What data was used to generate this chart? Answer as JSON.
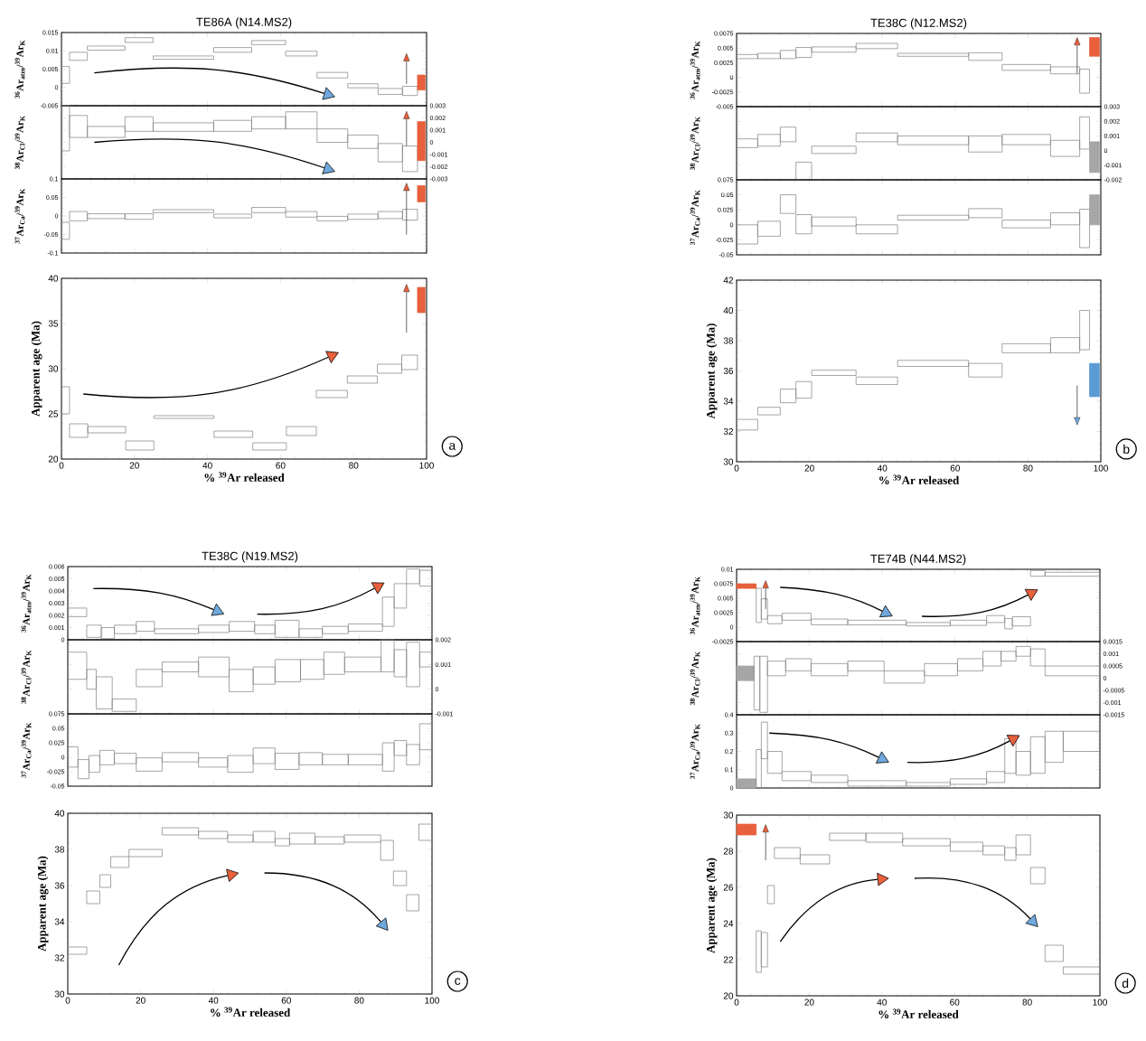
{
  "chart_data": [
    {
      "type": "histogram",
      "title": "TE86A (N14.MS2)",
      "ylabel": "$^{36}$Ar$_{atm}$/$^{39}$Ar$_{K}$",
      "xlim": [
        0,
        100
      ],
      "xticks": [
        0,
        20,
        40,
        60,
        80,
        100
      ],
      "ylim": [
        -0.005,
        0.015
      ],
      "yticks": [
        -0.005,
        0,
        0.005,
        0.01,
        0.015
      ],
      "tick_labels": "y",
      "color": "#7f7f7f",
      "bins": [
        0,
        2.2,
        7.1,
        17.4,
        25.1,
        41.7,
        52.1,
        61.4,
        70.0,
        78.4,
        86.7,
        93.4,
        97.5,
        99.6
      ],
      "base": [
        0.0011,
        0.0074,
        0.0102,
        0.0123,
        0.0077,
        0.0096,
        0.0117,
        0.0086,
        0.0026,
        -0.0001,
        -0.0019,
        -0.0022,
        -0.0007
      ],
      "values": [
        0.0046,
        0.0022,
        0.0011,
        0.0013,
        0.0009,
        0.0013,
        0.0011,
        0.0013,
        0.0015,
        0.0011,
        0.0016,
        0.0025,
        0.0041
      ],
      "colors": [
        "#7f7f7f",
        "#7f7f7f",
        "#7f7f7f",
        "#7f7f7f",
        "#7f7f7f",
        "#7f7f7f",
        "#7f7f7f",
        "#7f7f7f",
        "#7f7f7f",
        "#7f7f7f",
        "#7f7f7f",
        "#7f7f7f",
        "#e8603c"
      ]
    },
    {
      "type": "histogram",
      "ylabel": "$^{38}$Ar$_{Cl}$/$^{39}$Ar$_{K}$",
      "xlim": [
        0,
        100
      ],
      "xticks": [
        0,
        20,
        40,
        60,
        80,
        100
      ],
      "ylim": [
        -0.003,
        0.003
      ],
      "yticks": [
        -0.003,
        -0.002,
        -0.001,
        0,
        0.001,
        0.002,
        0.003
      ],
      "tick_labels": "y",
      "color": "#7f7f7f",
      "bins": [
        0,
        2.2,
        7.1,
        17.4,
        25.1,
        41.7,
        52.1,
        61.4,
        70.0,
        78.4,
        86.7,
        93.4,
        97.5,
        99.6
      ],
      "base": [
        -0.0007,
        0.0004,
        0.0004,
        0.0009,
        0.0009,
        0.0009,
        0.0011,
        0.0011,
        0.0,
        -0.0005,
        -0.0016,
        -0.0024,
        -0.0015
      ],
      "values": [
        0.0037,
        0.0018,
        0.0009,
        0.0012,
        0.0007,
        0.0009,
        0.001,
        0.0014,
        0.0011,
        0.0011,
        0.0015,
        0.0021,
        0.0032
      ],
      "colors": [
        "#7f7f7f",
        "#7f7f7f",
        "#7f7f7f",
        "#7f7f7f",
        "#7f7f7f",
        "#7f7f7f",
        "#7f7f7f",
        "#7f7f7f",
        "#7f7f7f",
        "#7f7f7f",
        "#7f7f7f",
        "#7f7f7f",
        "#e8603c"
      ]
    },
    {
      "type": "histogram",
      "ylabel": "$^{37}$Ar$_{Ca}$/$^{39}$Ar$_{K}$",
      "xlim": [
        0,
        100
      ],
      "xticks": [
        0,
        20,
        40,
        60,
        80,
        100
      ],
      "ylim": [
        -0.1,
        0.1
      ],
      "yticks": [
        -0.1,
        -0.05,
        0,
        0.05,
        0.1
      ],
      "tick_labels": "y",
      "color": "#7f7f7f",
      "bins": [
        0,
        2.2,
        7.1,
        17.4,
        25.1,
        41.7,
        52.1,
        61.4,
        70.0,
        78.4,
        86.7,
        93.4,
        97.5,
        99.6
      ],
      "base": [
        -0.063,
        -0.013,
        -0.007,
        -0.009,
        0.009,
        -0.005,
        0.009,
        -0.003,
        -0.013,
        -0.009,
        -0.007,
        -0.011,
        0.038
      ],
      "values": [
        0.046,
        0.025,
        0.013,
        0.015,
        0.008,
        0.01,
        0.014,
        0.015,
        0.012,
        0.014,
        0.019,
        0.029,
        0.044
      ],
      "colors": [
        "#7f7f7f",
        "#7f7f7f",
        "#7f7f7f",
        "#7f7f7f",
        "#7f7f7f",
        "#7f7f7f",
        "#7f7f7f",
        "#7f7f7f",
        "#7f7f7f",
        "#7f7f7f",
        "#7f7f7f",
        "#7f7f7f",
        "#e8603c"
      ]
    },
    {
      "type": "histogram",
      "xlabel": "% $^{39}$Ar released",
      "ylabel": "Apparent age (Ma)",
      "annotations": [
        "a"
      ],
      "xlim": [
        0,
        100
      ],
      "xticks": [
        0,
        20,
        40,
        60,
        80,
        100
      ],
      "ylim": [
        20,
        40
      ],
      "yticks": [
        20,
        25,
        30,
        35,
        40
      ],
      "color": "#7f7f7f",
      "bins": [
        0,
        2.2,
        7.2,
        17.6,
        25.3,
        41.8,
        52.4,
        61.6,
        69.8,
        78.3,
        86.5,
        93.2,
        97.5,
        99.6
      ],
      "base": [
        25.0,
        22.4,
        22.9,
        21.0,
        24.5,
        22.4,
        21.0,
        22.6,
        26.8,
        28.4,
        29.5,
        29.9,
        36.2
      ],
      "values": [
        3.0,
        1.5,
        0.7,
        1.0,
        0.3,
        0.7,
        0.8,
        1.0,
        0.8,
        0.8,
        1.0,
        1.6,
        2.8
      ],
      "colors": [
        "#7f7f7f",
        "#7f7f7f",
        "#7f7f7f",
        "#7f7f7f",
        "#7f7f7f",
        "#7f7f7f",
        "#7f7f7f",
        "#7f7f7f",
        "#7f7f7f",
        "#7f7f7f",
        "#7f7f7f",
        "#7f7f7f",
        "#e8603c"
      ]
    },
    {
      "type": "histogram",
      "title": "TE38C (N12.MS2)",
      "ylabel": "$^{36}$Ar$_{atm}$/$^{39}$Ar$_{K}$",
      "xlim": [
        0,
        100
      ],
      "xticks": [
        0,
        20,
        40,
        60,
        80,
        100
      ],
      "ylim": [
        -0.005,
        0.0075
      ],
      "yticks": [
        -0.005,
        -0.0025,
        0,
        0.0025,
        0.005,
        0.0075
      ],
      "tick_labels": "y",
      "color": "#7f7f7f",
      "bins": [
        0,
        5.8,
        12.0,
        16.3,
        20.6,
        32.8,
        44.2,
        63.7,
        72.9,
        86.2,
        94.2,
        96.9,
        99.6
      ],
      "base": [
        0.0032,
        0.0032,
        0.0032,
        0.0034,
        0.0043,
        0.0049,
        0.0036,
        0.0029,
        0.0012,
        0.0006,
        -0.0027,
        0.0036
      ],
      "values": [
        0.0007,
        0.0009,
        0.0014,
        0.0017,
        0.0009,
        0.0009,
        0.0005,
        0.0013,
        0.001,
        0.0012,
        0.0041,
        0.0032
      ],
      "colors": [
        "#7f7f7f",
        "#7f7f7f",
        "#7f7f7f",
        "#7f7f7f",
        "#7f7f7f",
        "#7f7f7f",
        "#7f7f7f",
        "#7f7f7f",
        "#7f7f7f",
        "#7f7f7f",
        "#7f7f7f",
        "#e8603c"
      ]
    },
    {
      "type": "histogram",
      "ylabel": "$^{38}$Ar$_{Cl}$/$^{39}$Ar$_{K}$",
      "xlim": [
        0,
        100
      ],
      "xticks": [
        0,
        20,
        40,
        60,
        80,
        100
      ],
      "ylim": [
        -0.002,
        0.003
      ],
      "yticks": [
        -0.002,
        -0.001,
        0,
        0.001,
        0.002,
        0.003
      ],
      "tick_labels": "y",
      "color": "#7f7f7f",
      "bins": [
        0,
        5.8,
        12.0,
        16.3,
        20.6,
        32.8,
        44.2,
        63.7,
        72.9,
        86.2,
        94.2,
        96.9,
        99.6
      ],
      "base": [
        0.0002,
        0.0003,
        0.0006,
        -0.002,
        -0.0002,
        0.0006,
        0.0004,
        -0.0001,
        0.0004,
        -0.0004,
        0.0001,
        -0.0015
      ],
      "values": [
        0.0006,
        0.0008,
        0.001,
        0.0012,
        0.0005,
        0.0006,
        0.0006,
        0.0011,
        0.0007,
        0.0011,
        0.0022,
        0.0021
      ],
      "colors": [
        "#7f7f7f",
        "#7f7f7f",
        "#7f7f7f",
        "#7f7f7f",
        "#7f7f7f",
        "#7f7f7f",
        "#7f7f7f",
        "#7f7f7f",
        "#7f7f7f",
        "#7f7f7f",
        "#7f7f7f",
        "#a6a6a6"
      ]
    },
    {
      "type": "histogram",
      "ylabel": "$^{37}$Ar$_{Ca}$/$^{39}$Ar$_{K}$",
      "xlim": [
        0,
        100
      ],
      "xticks": [
        0,
        20,
        40,
        60,
        80,
        100
      ],
      "ylim": [
        -0.05,
        0.075
      ],
      "yticks": [
        -0.05,
        -0.025,
        0,
        0.025,
        0.05,
        0.075
      ],
      "tick_labels": "y",
      "color": "#7f7f7f",
      "bins": [
        0,
        5.8,
        12.0,
        16.3,
        20.6,
        32.8,
        44.2,
        63.7,
        72.9,
        86.2,
        94.2,
        96.9,
        99.6
      ],
      "base": [
        -0.032,
        -0.019,
        0.019,
        -0.015,
        -0.002,
        -0.015,
        0.008,
        0.012,
        -0.005,
        0.0,
        -0.038,
        0.0
      ],
      "values": [
        0.032,
        0.025,
        0.031,
        0.032,
        0.015,
        0.015,
        0.008,
        0.015,
        0.013,
        0.02,
        0.064,
        0.05
      ],
      "colors": [
        "#7f7f7f",
        "#7f7f7f",
        "#7f7f7f",
        "#7f7f7f",
        "#7f7f7f",
        "#7f7f7f",
        "#7f7f7f",
        "#7f7f7f",
        "#7f7f7f",
        "#7f7f7f",
        "#7f7f7f",
        "#a6a6a6"
      ]
    },
    {
      "type": "histogram",
      "xlabel": "% $^{39}$Ar released",
      "ylabel": "Apparent age (Ma)",
      "annotations": [
        "b"
      ],
      "xlim": [
        0,
        100
      ],
      "xticks": [
        0,
        20,
        40,
        60,
        80,
        100
      ],
      "ylim": [
        30,
        42
      ],
      "yticks": [
        30,
        32,
        34,
        36,
        38,
        40,
        42
      ],
      "color": "#7f7f7f",
      "bins": [
        0,
        5.8,
        12.0,
        16.3,
        20.6,
        32.8,
        44.2,
        63.7,
        72.9,
        86.2,
        94.2,
        96.9,
        99.6
      ],
      "base": [
        32.1,
        33.1,
        33.9,
        34.2,
        35.7,
        35.1,
        36.3,
        35.6,
        37.2,
        37.2,
        37.4,
        34.3
      ],
      "values": [
        0.7,
        0.5,
        0.9,
        1.1,
        0.35,
        0.5,
        0.4,
        0.9,
        0.6,
        1.0,
        2.6,
        2.2
      ],
      "colors": [
        "#7f7f7f",
        "#7f7f7f",
        "#7f7f7f",
        "#7f7f7f",
        "#7f7f7f",
        "#7f7f7f",
        "#7f7f7f",
        "#7f7f7f",
        "#7f7f7f",
        "#7f7f7f",
        "#7f7f7f",
        "#5b9bd5"
      ]
    },
    {
      "type": "histogram",
      "title": "TE38C (N19.MS2)",
      "ylabel": "$^{36}$Ar$_{atm}$/$^{39}$Ar$_{K}$",
      "xlim": [
        0,
        100
      ],
      "xticks": [
        0,
        20,
        40,
        60,
        80,
        100
      ],
      "ylim": [
        0,
        0.006
      ],
      "yticks": [
        0,
        0.001,
        0.002,
        0.003,
        0.004,
        0.005,
        0.006
      ],
      "tick_labels": "y",
      "color": "#7f7f7f",
      "bins": [
        0,
        5.2,
        9.2,
        12.8,
        18.8,
        23.8,
        35.9,
        44.3,
        51.3,
        56.9,
        63.5,
        69.9,
        77.0,
        86.4,
        89.6,
        93.0,
        96.6,
        100
      ],
      "base": [
        0.0019,
        0.0002,
        0.0001,
        0.0005,
        0.0007,
        0.0005,
        0.0006,
        0.0007,
        0.0005,
        0.0002,
        0.0002,
        0.0005,
        0.0007,
        0.0011,
        0.0026,
        0.0046,
        0.0044
      ],
      "values": [
        0.0007,
        0.001,
        0.0009,
        0.0007,
        0.0008,
        0.0004,
        0.0006,
        0.0008,
        0.0007,
        0.0014,
        0.0007,
        0.0006,
        0.0006,
        0.0024,
        0.002,
        0.0012,
        0.0013
      ]
    },
    {
      "type": "histogram",
      "ylabel": "$^{38}$Ar$_{Cl}$/$^{39}$Ar$_{K}$",
      "xlim": [
        0,
        100
      ],
      "xticks": [
        0,
        20,
        40,
        60,
        80,
        100
      ],
      "ylim": [
        -0.001,
        0.002
      ],
      "yticks": [
        -0.001,
        0,
        0.001,
        0.002
      ],
      "tick_labels": "y",
      "color": "#7f7f7f",
      "bins": [
        0,
        5.2,
        7.8,
        12.2,
        18.8,
        25.9,
        35.9,
        44.3,
        50.9,
        56.9,
        63.9,
        70.3,
        76.0,
        86.0,
        89.6,
        93.0,
        96.6,
        100
      ],
      "base": [
        0.0004,
        0.0,
        -0.0008,
        -0.0009,
        0.0001,
        0.0007,
        0.0005,
        -0.0001,
        0.0002,
        0.0003,
        0.0004,
        0.0006,
        0.0007,
        0.0007,
        0.0005,
        0.0001,
        0.0009
      ],
      "values": [
        0.0011,
        0.0008,
        0.0013,
        0.0005,
        0.0007,
        0.0004,
        0.0008,
        0.0009,
        0.0007,
        0.0009,
        0.0008,
        0.0009,
        0.0006,
        0.0013,
        0.0011,
        0.0018,
        0.0006
      ]
    },
    {
      "type": "histogram",
      "ylabel": "$^{37}$Ar$_{Ca}$/$^{39}$Ar$_{K}$",
      "xlim": [
        0,
        100
      ],
      "xticks": [
        0,
        20,
        40,
        60,
        80,
        100
      ],
      "ylim": [
        -0.05,
        0.075
      ],
      "yticks": [
        -0.05,
        -0.025,
        0,
        0.025,
        0.05,
        0.075
      ],
      "tick_labels": "y",
      "color": "#7f7f7f",
      "bins": [
        0,
        2.8,
        5.8,
        8.8,
        12.8,
        18.8,
        25.9,
        35.9,
        43.9,
        50.9,
        56.9,
        63.5,
        69.9,
        77.0,
        86.4,
        89.6,
        93.0,
        96.6,
        100
      ],
      "base": [
        -0.017,
        -0.037,
        -0.026,
        -0.013,
        -0.011,
        -0.024,
        -0.008,
        -0.017,
        -0.026,
        -0.011,
        -0.021,
        -0.013,
        -0.013,
        -0.013,
        -0.024,
        0.003,
        -0.013,
        0.013
      ],
      "values": [
        0.035,
        0.033,
        0.029,
        0.025,
        0.018,
        0.023,
        0.016,
        0.016,
        0.029,
        0.027,
        0.028,
        0.021,
        0.018,
        0.018,
        0.049,
        0.026,
        0.035,
        0.045
      ]
    },
    {
      "type": "histogram",
      "xlabel": "% $^{39}$Ar released",
      "ylabel": "Apparent age (Ma)",
      "annotations": [
        "c"
      ],
      "xlim": [
        0,
        100
      ],
      "xticks": [
        0,
        20,
        40,
        60,
        80,
        100
      ],
      "ylim": [
        30,
        40
      ],
      "yticks": [
        30,
        32,
        34,
        36,
        38,
        40
      ],
      "color": "#7f7f7f",
      "bins": [
        0,
        5.2,
        8.8,
        11.8,
        16.8,
        25.9,
        35.9,
        43.9,
        50.9,
        56.9,
        60.9,
        67.9,
        75.9,
        85.9,
        89.4,
        93.0,
        96.4,
        100
      ],
      "base": [
        32.2,
        35.0,
        35.9,
        37.0,
        37.6,
        38.8,
        38.6,
        38.4,
        38.4,
        38.2,
        38.3,
        38.3,
        38.4,
        37.4,
        36.0,
        34.6,
        38.5
      ],
      "values": [
        0.4,
        0.7,
        0.7,
        0.6,
        0.4,
        0.4,
        0.4,
        0.4,
        0.6,
        0.4,
        0.6,
        0.4,
        0.4,
        1.1,
        0.8,
        0.9,
        0.9
      ]
    },
    {
      "type": "histogram",
      "title": "TE74B (N44.MS2)",
      "ylabel": "$^{36}$Ar$_{atm}$/$^{39}$Ar$_{K}$",
      "xlim": [
        0,
        100
      ],
      "xticks": [
        0,
        20,
        40,
        60,
        80,
        100
      ],
      "ylim": [
        -0.0025,
        0.01
      ],
      "yticks": [
        -0.0025,
        0,
        0.0025,
        0.005,
        0.0075,
        0.01
      ],
      "tick_labels": "y",
      "color": "#7f7f7f",
      "bins": [
        0,
        5.4,
        6.8,
        8.5,
        12.5,
        20.5,
        30.6,
        46.7,
        58.8,
        68.8,
        73.8,
        75.9,
        80.9,
        84.9,
        100
      ],
      "base": [
        0.0067,
        0.0008,
        0.0014,
        0.0006,
        0.0012,
        0.0004,
        0.0004,
        0.0002,
        0.0003,
        0.0008,
        -0.0003,
        0.0002,
        0.0088,
        0.0088
      ],
      "values": [
        0.0008,
        0.0059,
        0.0035,
        0.0014,
        0.0012,
        0.001,
        0.0008,
        0.0006,
        0.0009,
        0.0012,
        0.0018,
        0.0016,
        0.001,
        0.0007
      ],
      "colors": [
        "#e8603c",
        "#7f7f7f",
        "#7f7f7f",
        "#7f7f7f",
        "#7f7f7f",
        "#7f7f7f",
        "#7f7f7f",
        "#7f7f7f",
        "#7f7f7f",
        "#7f7f7f",
        "#7f7f7f",
        "#7f7f7f",
        "#7f7f7f",
        "#7f7f7f"
      ]
    },
    {
      "type": "histogram",
      "ylabel": "$^{38}$Ar$_{Cl}$/$^{39}$Ar$_{K}$",
      "xlim": [
        0,
        100
      ],
      "xticks": [
        0,
        20,
        40,
        60,
        80,
        100
      ],
      "ylim": [
        -0.0015,
        0.0015
      ],
      "yticks": [
        -0.0015,
        -0.001,
        -0.0005,
        0,
        0.0005,
        0.001,
        0.0015
      ],
      "tick_labels": "y",
      "color": "#7f7f7f",
      "bins": [
        0,
        4.8,
        6.4,
        8.5,
        13.5,
        20.5,
        30.6,
        40.6,
        51.7,
        60.8,
        67.8,
        72.8,
        76.9,
        80.9,
        84.9,
        100
      ],
      "base": [
        -0.0001,
        -0.0013,
        -0.0014,
        0.0001,
        0.0003,
        0.0001,
        0.0003,
        -0.0002,
        0.0001,
        0.0003,
        0.0005,
        0.0007,
        0.0009,
        0.0005,
        0.0001
      ],
      "values": [
        0.0006,
        0.0022,
        0.0023,
        0.0006,
        0.0005,
        0.0005,
        0.0004,
        0.0005,
        0.0005,
        0.0005,
        0.0006,
        0.0004,
        0.0004,
        0.0007,
        0.0004
      ],
      "colors": [
        "#a6a6a6",
        "#7f7f7f",
        "#7f7f7f",
        "#7f7f7f",
        "#7f7f7f",
        "#7f7f7f",
        "#7f7f7f",
        "#7f7f7f",
        "#7f7f7f",
        "#7f7f7f",
        "#7f7f7f",
        "#7f7f7f",
        "#7f7f7f",
        "#7f7f7f",
        "#7f7f7f"
      ]
    },
    {
      "type": "histogram",
      "ylabel": "$^{37}$Ar$_{Ca}$/$^{39}$Ar$_{K}$",
      "xlim": [
        0,
        100
      ],
      "xticks": [
        0,
        20,
        40,
        60,
        80,
        100
      ],
      "ylim": [
        0,
        0.4
      ],
      "yticks": [
        0,
        0.1,
        0.2,
        0.3,
        0.4
      ],
      "tick_labels": "y",
      "color": "#7f7f7f",
      "bins": [
        0,
        5.4,
        6.8,
        8.5,
        12.5,
        20.5,
        30.6,
        46.7,
        58.8,
        68.8,
        73.8,
        76.9,
        80.9,
        84.9,
        89.9,
        100
      ],
      "base": [
        0.0,
        0.0,
        0.16,
        0.08,
        0.04,
        0.03,
        0.01,
        0.01,
        0.02,
        0.03,
        0.08,
        0.07,
        0.08,
        0.14,
        0.2
      ],
      "values": [
        0.05,
        0.21,
        0.2,
        0.12,
        0.05,
        0.04,
        0.03,
        0.02,
        0.03,
        0.06,
        0.19,
        0.13,
        0.2,
        0.17,
        0.11
      ],
      "colors": [
        "#a6a6a6",
        "#7f7f7f",
        "#7f7f7f",
        "#7f7f7f",
        "#7f7f7f",
        "#7f7f7f",
        "#7f7f7f",
        "#7f7f7f",
        "#7f7f7f",
        "#7f7f7f",
        "#7f7f7f",
        "#7f7f7f",
        "#7f7f7f",
        "#7f7f7f",
        "#7f7f7f"
      ]
    },
    {
      "type": "histogram",
      "xlabel": "% $^{39}$Ar released",
      "ylabel": "Apparent age (Ma)",
      "annotations": [
        "d"
      ],
      "xlim": [
        0,
        100
      ],
      "xticks": [
        0,
        20,
        40,
        60,
        80,
        100
      ],
      "ylim": [
        20,
        30
      ],
      "yticks": [
        20,
        22,
        24,
        26,
        28,
        30
      ],
      "color": "#7f7f7f",
      "bins": [
        0,
        5.4,
        6.8,
        8.5,
        10.4,
        17.5,
        25.6,
        35.6,
        45.7,
        58.8,
        67.8,
        73.8,
        76.9,
        80.9,
        84.9,
        89.9,
        100
      ],
      "base": [
        28.9,
        21.3,
        21.6,
        25.1,
        27.6,
        27.3,
        28.6,
        28.5,
        28.3,
        28.0,
        27.8,
        27.5,
        27.8,
        26.2,
        21.9,
        21.2
      ],
      "values": [
        0.6,
        2.3,
        1.9,
        1.0,
        0.6,
        0.5,
        0.4,
        0.5,
        0.4,
        0.5,
        0.5,
        0.7,
        1.1,
        0.9,
        0.9,
        0.4
      ],
      "colors": [
        "#e8603c",
        "#7f7f7f",
        "#7f7f7f",
        "#7f7f7f",
        "#7f7f7f",
        "#7f7f7f",
        "#7f7f7f",
        "#7f7f7f",
        "#7f7f7f",
        "#7f7f7f",
        "#7f7f7f",
        "#7f7f7f",
        "#7f7f7f",
        "#7f7f7f",
        "#7f7f7f",
        "#7f7f7f"
      ]
    }
  ]
}
